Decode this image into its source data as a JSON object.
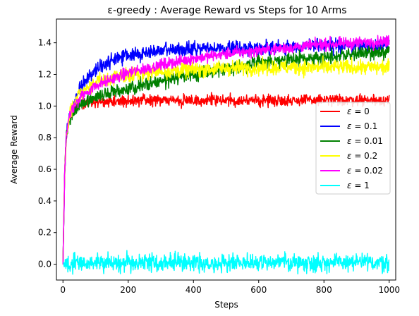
{
  "chart_data": {
    "type": "line",
    "title": "ε-greedy : Average Reward vs Steps for 10 Arms",
    "xlabel": "Steps",
    "ylabel": "Average Reward",
    "xlim": [
      -20,
      1020
    ],
    "ylim": [
      -0.1,
      1.55
    ],
    "xticks": [
      0,
      200,
      400,
      600,
      800,
      1000
    ],
    "yticks": [
      0.0,
      0.2,
      0.4,
      0.6,
      0.8,
      1.0,
      1.2,
      1.4
    ],
    "xtick_labels": [
      "0",
      "200",
      "400",
      "600",
      "800",
      "1000"
    ],
    "ytick_labels": [
      "0.0",
      "0.2",
      "0.4",
      "0.6",
      "0.8",
      "1.0",
      "1.2",
      "1.4"
    ],
    "grid": false,
    "legend_position": "center-right",
    "series": [
      {
        "name": "ε = 0",
        "label_symbol": "ε",
        "label_value": "0",
        "color": "#ff0000",
        "noise": 0.018,
        "points": [
          [
            0,
            0.0
          ],
          [
            5,
            0.55
          ],
          [
            10,
            0.8
          ],
          [
            20,
            0.93
          ],
          [
            40,
            1.0
          ],
          [
            80,
            1.02
          ],
          [
            200,
            1.035
          ],
          [
            600,
            1.035
          ],
          [
            1000,
            1.04
          ]
        ]
      },
      {
        "name": "ε = 0.1",
        "label_symbol": "ε",
        "label_value": "0.1",
        "color": "#0000ff",
        "noise": 0.022,
        "points": [
          [
            0,
            0.0
          ],
          [
            5,
            0.55
          ],
          [
            10,
            0.8
          ],
          [
            20,
            0.93
          ],
          [
            50,
            1.12
          ],
          [
            100,
            1.23
          ],
          [
            150,
            1.29
          ],
          [
            200,
            1.32
          ],
          [
            300,
            1.35
          ],
          [
            400,
            1.36
          ],
          [
            600,
            1.37
          ],
          [
            800,
            1.38
          ],
          [
            1000,
            1.38
          ]
        ]
      },
      {
        "name": "ε = 0.01",
        "label_symbol": "ε",
        "label_value": "0.01",
        "color": "#008000",
        "noise": 0.022,
        "points": [
          [
            0,
            0.0
          ],
          [
            5,
            0.55
          ],
          [
            10,
            0.8
          ],
          [
            20,
            0.93
          ],
          [
            50,
            1.0
          ],
          [
            100,
            1.06
          ],
          [
            200,
            1.11
          ],
          [
            300,
            1.16
          ],
          [
            400,
            1.2
          ],
          [
            500,
            1.24
          ],
          [
            600,
            1.27
          ],
          [
            700,
            1.29
          ],
          [
            800,
            1.31
          ],
          [
            900,
            1.33
          ],
          [
            1000,
            1.34
          ]
        ]
      },
      {
        "name": "ε = 0.2",
        "label_symbol": "ε",
        "label_value": "0.2",
        "color": "#ffff00",
        "noise": 0.024,
        "points": [
          [
            0,
            0.0
          ],
          [
            5,
            0.55
          ],
          [
            10,
            0.8
          ],
          [
            20,
            0.95
          ],
          [
            50,
            1.08
          ],
          [
            100,
            1.15
          ],
          [
            200,
            1.2
          ],
          [
            300,
            1.22
          ],
          [
            500,
            1.24
          ],
          [
            700,
            1.245
          ],
          [
            1000,
            1.245
          ]
        ]
      },
      {
        "name": "ε = 0.02",
        "label_symbol": "ε",
        "label_value": "0.02",
        "color": "#ff00ff",
        "noise": 0.018,
        "points": [
          [
            0,
            0.0
          ],
          [
            5,
            0.55
          ],
          [
            10,
            0.8
          ],
          [
            20,
            0.95
          ],
          [
            50,
            1.05
          ],
          [
            100,
            1.13
          ],
          [
            200,
            1.21
          ],
          [
            300,
            1.26
          ],
          [
            400,
            1.3
          ],
          [
            500,
            1.33
          ],
          [
            600,
            1.35
          ],
          [
            700,
            1.37
          ],
          [
            800,
            1.39
          ],
          [
            900,
            1.4
          ],
          [
            1000,
            1.41
          ]
        ]
      },
      {
        "name": "ε = 1",
        "label_symbol": "ε",
        "label_value": "1",
        "color": "#00ffff",
        "noise": 0.028,
        "points": [
          [
            0,
            0.01
          ],
          [
            1000,
            0.01
          ]
        ]
      }
    ]
  }
}
